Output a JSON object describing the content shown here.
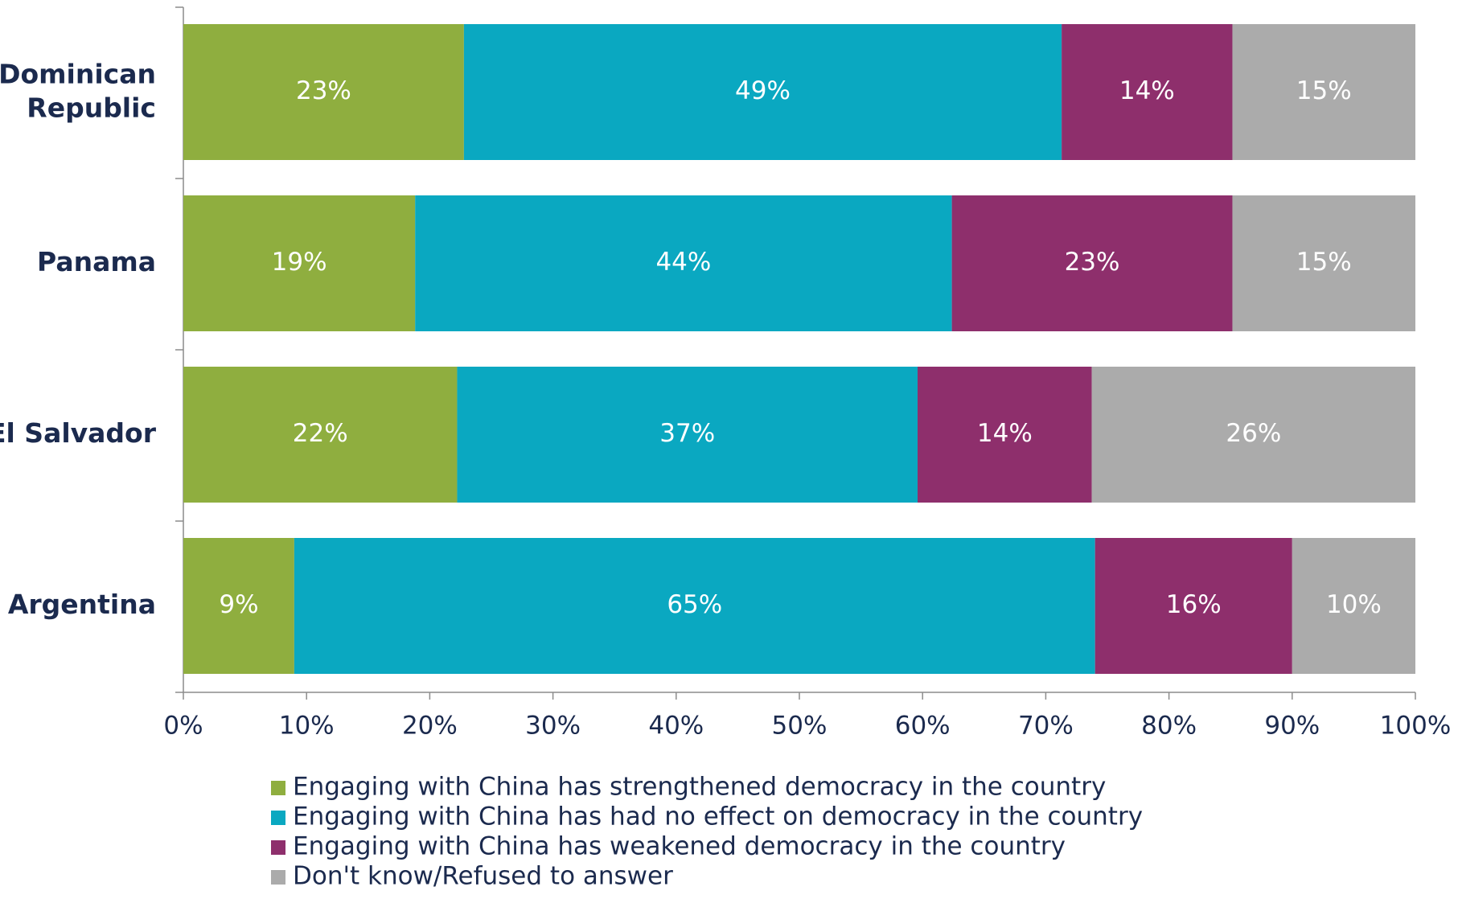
{
  "chart_data": {
    "type": "bar",
    "orientation": "horizontal",
    "stack": "percent",
    "categories": [
      "Dominican Republic",
      "Panama",
      "El Salvador",
      "Argentina"
    ],
    "series": [
      {
        "name": "Engaging with China has strengthened democracy in the country",
        "color": "#8fae3f",
        "values": [
          23,
          19,
          22,
          9
        ],
        "value_labels": [
          "23%",
          "19%",
          "22%",
          "9%"
        ]
      },
      {
        "name": "Engaging with China has had no effect on democracy in the country",
        "color": "#0aa8c1",
        "values": [
          49,
          44,
          37,
          65
        ],
        "value_labels": [
          "49%",
          "44%",
          "37%",
          "65%"
        ]
      },
      {
        "name": "Engaging with China has weakened democracy in the country",
        "color": "#8e2f6c",
        "values": [
          14,
          23,
          14,
          16
        ],
        "value_labels": [
          "14%",
          "23%",
          "14%",
          "16%"
        ]
      },
      {
        "name": "Don't know/Refused to answer",
        "color": "#ababab",
        "values": [
          15,
          15,
          26,
          10
        ],
        "value_labels": [
          "15%",
          "15%",
          "26%",
          "10%"
        ]
      }
    ],
    "xlim": [
      0,
      100
    ],
    "xticks": [
      {
        "value": 0,
        "label": "0%"
      },
      {
        "value": 10,
        "label": "10%"
      },
      {
        "value": 20,
        "label": "20%"
      },
      {
        "value": 30,
        "label": "30%"
      },
      {
        "value": 40,
        "label": "40%"
      },
      {
        "value": 50,
        "label": "50%"
      },
      {
        "value": 60,
        "label": "60%"
      },
      {
        "value": 70,
        "label": "70%"
      },
      {
        "value": 80,
        "label": "80%"
      },
      {
        "value": 90,
        "label": "90%"
      },
      {
        "value": 100,
        "label": "100%"
      }
    ],
    "legend": "bottom"
  }
}
